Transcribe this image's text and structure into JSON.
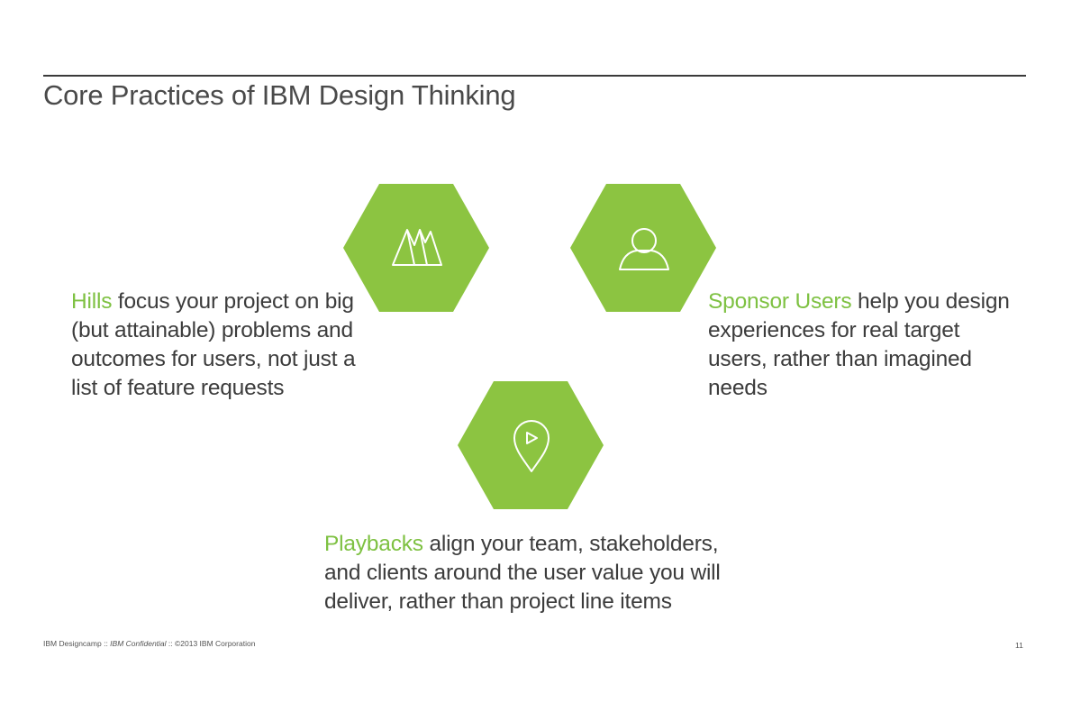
{
  "slide": {
    "title": "Core Practices of IBM Design Thinking",
    "accent_color": "#7ec142",
    "hexagon_color": "#8cc441"
  },
  "hills": {
    "icon": "mountains-icon",
    "keyword": "Hills",
    "lines": [
      " focus your project on big",
      "(but attainable) problems and",
      "outcomes for users, not just a",
      "list of feature requests"
    ]
  },
  "sponsor_users": {
    "icon": "person-icon",
    "keyword": "Sponsor Users",
    "lines": [
      " help you design",
      "experiences for real target",
      "users, rather than imagined",
      "needs"
    ]
  },
  "playbacks": {
    "icon": "location-pin-play-icon",
    "keyword": "Playbacks",
    "lines": [
      " align your team, stakeholders,",
      "and clients around the user value you will",
      "deliver, rather than project line items"
    ]
  },
  "footer": {
    "left": "IBM Designcamp",
    "sep": " :: ",
    "confidential": "IBM Confidential",
    "copyright": "©2013 IBM Corporation",
    "page_number": "11"
  }
}
